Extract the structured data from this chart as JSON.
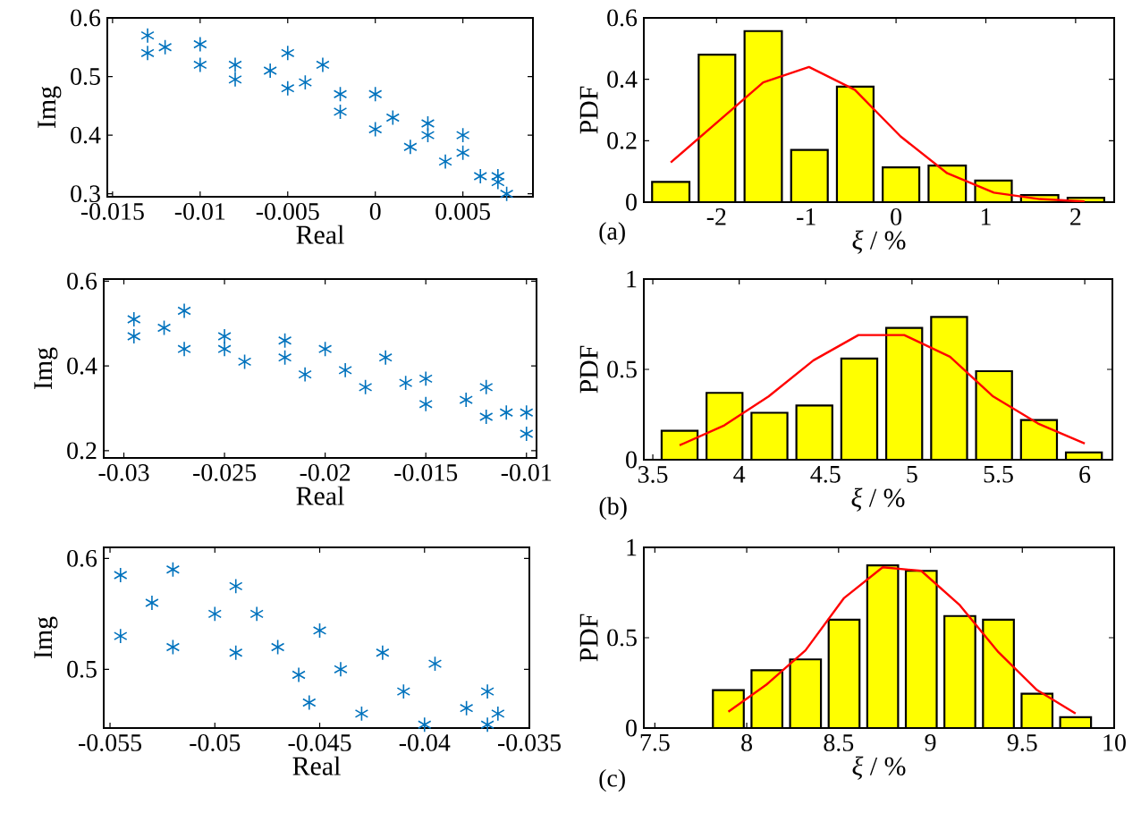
{
  "chart_data": [
    {
      "type": "scatter",
      "xlabel": "Real",
      "ylabel": "Img",
      "marker": "cross",
      "color": "#0072bd",
      "xlim": [
        -0.0153,
        0.009
      ],
      "xticks": [
        -0.015,
        -0.01,
        -0.005,
        0,
        0.005
      ],
      "ylim": [
        0.295,
        0.6
      ],
      "yticks": [
        0.3,
        0.4,
        0.5,
        0.6
      ],
      "x": [
        -0.013,
        -0.01,
        -0.005,
        -0.003,
        0,
        0.003,
        0.005,
        0.007,
        -0.013,
        -0.01,
        -0.008,
        -0.005,
        -0.002,
        0,
        0.002,
        0.004,
        0.006,
        0.0075,
        -0.012,
        -0.008,
        -0.006,
        -0.004,
        -0.002,
        0.001,
        0.003,
        0.005,
        0.007
      ],
      "values": [
        0.57,
        0.555,
        0.54,
        0.52,
        0.47,
        0.42,
        0.4,
        0.33,
        0.54,
        0.52,
        0.495,
        0.48,
        0.44,
        0.41,
        0.38,
        0.355,
        0.33,
        0.3,
        0.55,
        0.52,
        0.51,
        0.49,
        0.47,
        0.43,
        0.4,
        0.37,
        0.32
      ]
    },
    {
      "type": "histogram",
      "xlabel": "*ξ* / %",
      "ylabel": "PDF",
      "annotations": [
        "(a)"
      ],
      "xlim": [
        -2.81,
        2.43
      ],
      "xticks": [
        -2,
        -1,
        0,
        1,
        2
      ],
      "ylim": [
        0,
        0.6
      ],
      "yticks": [
        0,
        0.2,
        0.4,
        0.6
      ],
      "series": [
        {
          "type": "histogram",
          "color": "#ffff00",
          "bins": [
            -2.77,
            -2.25,
            -1.74,
            -1.22,
            -0.71,
            -0.2,
            0.31,
            0.83,
            1.34,
            1.86,
            2.37
          ],
          "values": [
            0.066,
            0.48,
            0.557,
            0.17,
            0.376,
            0.113,
            0.119,
            0.07,
            0.023,
            0.014
          ]
        },
        {
          "type": "line",
          "color": "#ff0000",
          "x": [
            -2.51,
            -1.48,
            -0.97,
            -0.46,
            0.05,
            0.57,
            1.09,
            1.6,
            2.1
          ],
          "values": [
            0.129,
            0.39,
            0.44,
            0.366,
            0.214,
            0.094,
            0.031,
            0.01,
            0.002
          ]
        }
      ]
    },
    {
      "type": "scatter",
      "xlabel": "Real",
      "ylabel": "Img",
      "marker": "cross",
      "color": "#0072bd",
      "xlim": [
        -0.031,
        -0.0095
      ],
      "xticks": [
        -0.03,
        -0.025,
        -0.02,
        -0.015,
        -0.01
      ],
      "ylim": [
        0.183,
        0.605
      ],
      "yticks": [
        0.2,
        0.4,
        0.6
      ],
      "x": [
        -0.0295,
        -0.027,
        -0.025,
        -0.022,
        -0.02,
        -0.017,
        -0.015,
        -0.012,
        -0.01,
        -0.0295,
        -0.027,
        -0.024,
        -0.021,
        -0.018,
        -0.015,
        -0.012,
        -0.01,
        -0.028,
        -0.025,
        -0.022,
        -0.019,
        -0.016,
        -0.013,
        -0.011
      ],
      "values": [
        0.51,
        0.53,
        0.47,
        0.46,
        0.44,
        0.42,
        0.37,
        0.35,
        0.29,
        0.47,
        0.44,
        0.41,
        0.38,
        0.35,
        0.31,
        0.28,
        0.24,
        0.49,
        0.44,
        0.42,
        0.39,
        0.36,
        0.32,
        0.29
      ]
    },
    {
      "type": "histogram",
      "xlabel": "*ξ* / %",
      "ylabel": "PDF",
      "annotations": [
        "(b)"
      ],
      "xlim": [
        3.448,
        6.16
      ],
      "xticks": [
        3.5,
        4,
        4.5,
        5,
        5.5,
        6
      ],
      "ylim": [
        0,
        1
      ],
      "yticks": [
        0,
        0.5,
        1
      ],
      "series": [
        {
          "type": "histogram",
          "color": "#ffff00",
          "bins": [
            3.525,
            3.785,
            4.045,
            4.305,
            4.565,
            4.825,
            5.085,
            5.345,
            5.605,
            5.865,
            6.125
          ],
          "values": [
            0.16,
            0.37,
            0.26,
            0.3,
            0.56,
            0.73,
            0.79,
            0.49,
            0.22,
            0.04
          ]
        },
        {
          "type": "line",
          "color": "#ff0000",
          "x": [
            3.655,
            3.914,
            4.17,
            4.43,
            4.69,
            4.955,
            5.22,
            5.47,
            5.73,
            6.0
          ],
          "values": [
            0.08,
            0.19,
            0.35,
            0.55,
            0.69,
            0.69,
            0.57,
            0.35,
            0.2,
            0.09
          ]
        }
      ]
    },
    {
      "type": "scatter",
      "xlabel": "Real",
      "ylabel": "Img",
      "marker": "cross",
      "color": "#0072bd",
      "xlim": [
        -0.0553,
        -0.035
      ],
      "xticks": [
        -0.055,
        -0.05,
        -0.045,
        -0.04,
        -0.035
      ],
      "ylim": [
        0.447,
        0.61
      ],
      "yticks": [
        0.5,
        0.6
      ],
      "x": [
        -0.0545,
        -0.052,
        -0.049,
        -0.048,
        -0.045,
        -0.042,
        -0.0395,
        -0.037,
        -0.0545,
        -0.052,
        -0.049,
        -0.046,
        -0.0455,
        -0.043,
        -0.04,
        -0.037,
        -0.053,
        -0.05,
        -0.047,
        -0.044,
        -0.041,
        -0.038,
        -0.0365
      ],
      "values": [
        0.585,
        0.59,
        0.575,
        0.55,
        0.535,
        0.515,
        0.505,
        0.48,
        0.53,
        0.52,
        0.515,
        0.495,
        0.47,
        0.46,
        0.45,
        0.45,
        0.56,
        0.55,
        0.52,
        0.5,
        0.48,
        0.465,
        0.46
      ]
    },
    {
      "type": "histogram",
      "xlabel": "*ξ* / %",
      "ylabel": "PDF",
      "annotations": [
        "(c)"
      ],
      "xlim": [
        7.44,
        10
      ],
      "xticks": [
        7.5,
        8,
        8.5,
        9,
        9.5,
        10
      ],
      "ylim": [
        0,
        1
      ],
      "yticks": [
        0,
        0.5,
        1
      ],
      "series": [
        {
          "type": "histogram",
          "color": "#ffff00",
          "bins": [
            7.795,
            8.005,
            8.215,
            8.425,
            8.635,
            8.845,
            9.055,
            9.265,
            9.475,
            9.685,
            9.895
          ],
          "values": [
            0.21,
            0.32,
            0.38,
            0.6,
            0.9,
            0.87,
            0.62,
            0.6,
            0.19,
            0.06
          ]
        },
        {
          "type": "line",
          "color": "#ff0000",
          "x": [
            7.9,
            8.107,
            8.32,
            8.53,
            8.74,
            8.95,
            9.16,
            9.37,
            9.58,
            9.79
          ],
          "values": [
            0.09,
            0.24,
            0.43,
            0.72,
            0.89,
            0.87,
            0.68,
            0.42,
            0.21,
            0.08
          ]
        }
      ]
    }
  ]
}
